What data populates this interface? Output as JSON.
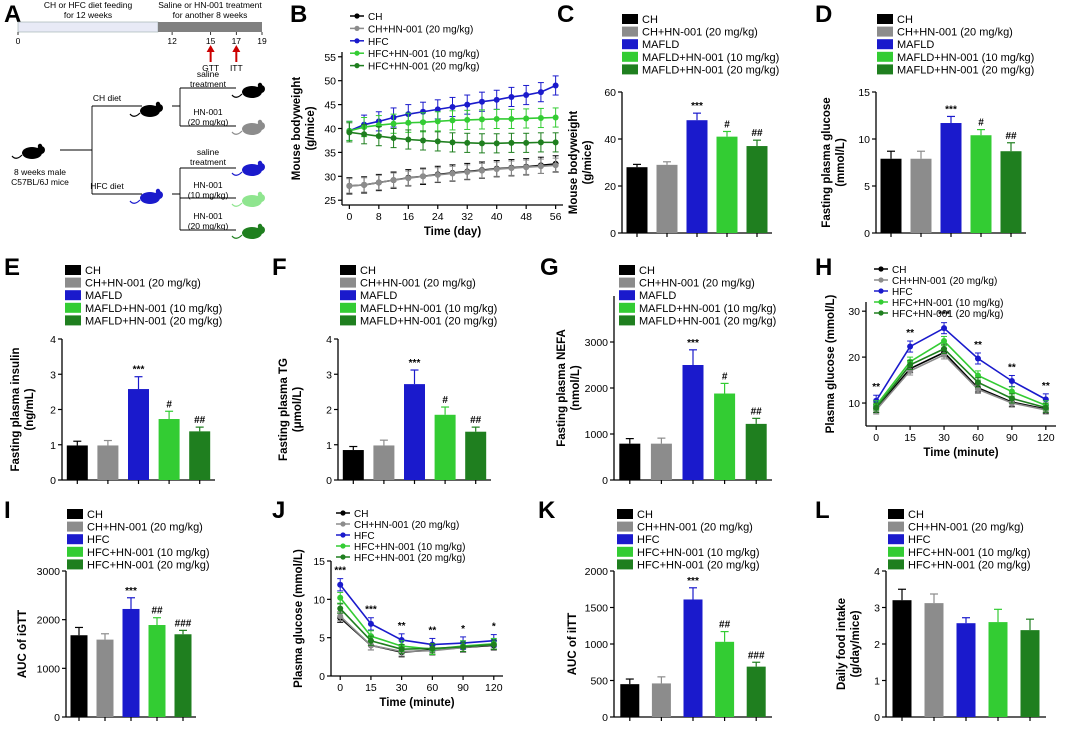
{
  "panel_letters": [
    "A",
    "B",
    "C",
    "D",
    "E",
    "F",
    "G",
    "H",
    "I",
    "J",
    "K",
    "L"
  ],
  "colors": {
    "CH": "#000000",
    "CHHN": "#8c8c8c",
    "HFC": "#1a1acc",
    "HFC10": "#33cc33",
    "HFC20": "#1f7f1f",
    "arrow": "#cc0000",
    "bar_light": "#e8eaf6",
    "bar_dark": "#808080"
  },
  "schematic": {
    "bar1_label": "CH or HFC diet feeding\nfor 12 weeks",
    "bar2_label": "Saline or HN-001 treatment\nfor another  8 weeks",
    "ticks": [
      "0",
      "12",
      "15",
      "17",
      "19"
    ],
    "gtt": "GTT",
    "itt": "ITT",
    "start": "8 weeks male\nC57BL/6J mice",
    "ch_diet": "CH diet",
    "hfc_diet": "HFC diet",
    "saline": "saline\ntreatment",
    "hn20": "HN-001\n(20 mg/kg)",
    "hn10": "HN-001\n(10 mg/kg)"
  },
  "chart_data": [
    {
      "panel": "B",
      "type": "line",
      "ylabel": "Mouse bodyweight\n(g/mice)",
      "xlabel": "Time (day)",
      "x": [
        0,
        4,
        8,
        12,
        16,
        20,
        24,
        28,
        32,
        36,
        40,
        44,
        48,
        52,
        56
      ],
      "xticks": [
        0,
        8,
        16,
        24,
        32,
        40,
        48,
        56
      ],
      "xlim": [
        -2,
        58
      ],
      "ylim": [
        24,
        56
      ],
      "yticks": [
        25,
        30,
        35,
        40,
        45,
        50,
        55
      ],
      "legend": [
        "CH",
        "CH+HN-001 (20 mg/kg)",
        "HFC",
        "HFC+HN-001 (10 mg/kg)",
        "HFC+HN-001 (20 mg/kg)"
      ],
      "series": [
        {
          "name": "CH",
          "values": [
            28,
            28.2,
            28.7,
            29.2,
            29.7,
            30,
            30.4,
            30.7,
            31,
            31.3,
            31.6,
            31.8,
            32,
            32.3,
            32.6
          ],
          "err": 1.7
        },
        {
          "name": "CH+HN-001 (20 mg/kg)",
          "values": [
            28,
            28.2,
            28.7,
            29.2,
            29.6,
            30,
            30.3,
            30.6,
            30.9,
            31.2,
            31.5,
            31.7,
            31.9,
            32.1,
            32.3
          ],
          "err": 1.5
        },
        {
          "name": "HFC",
          "values": [
            39.5,
            40.8,
            41.5,
            42.3,
            43,
            43.5,
            44,
            44.5,
            45,
            45.6,
            46,
            46.6,
            47,
            47.6,
            49
          ],
          "err": 2
        },
        {
          "name": "HFC+HN-001 (10 mg/kg)",
          "values": [
            39.5,
            40.3,
            40.7,
            41,
            41.2,
            41.3,
            41.5,
            41.7,
            41.8,
            41.9,
            42,
            42,
            42.1,
            42.2,
            42.3
          ],
          "err": 2
        },
        {
          "name": "HFC+HN-001 (20 mg/kg)",
          "values": [
            39.2,
            38.8,
            38.4,
            38,
            37.7,
            37.5,
            37.3,
            37.1,
            37,
            36.9,
            36.9,
            37,
            37,
            37.1,
            37.1
          ],
          "err": 2
        }
      ]
    },
    {
      "panel": "C",
      "type": "bar",
      "ylabel": "Mouse bodyweight\n(g/mice)",
      "ylim": [
        0,
        60
      ],
      "yticks": [
        0,
        20,
        40,
        60
      ],
      "legend": [
        "CH",
        "CH+HN-001 (20 mg/kg)",
        "MAFLD",
        "MAFLD+HN-001 (10 mg/kg)",
        "MAFLD+HN-001 (20 mg/kg)"
      ],
      "values": [
        28,
        29,
        48,
        41,
        37
      ],
      "errors": [
        1.2,
        1.3,
        3,
        2.2,
        2.5
      ],
      "annotations": [
        "",
        "",
        "***",
        "#",
        "##"
      ]
    },
    {
      "panel": "D",
      "type": "bar",
      "ylabel": "Fasting plasma glucose\n(mmol/L)",
      "ylim": [
        0,
        15
      ],
      "yticks": [
        0,
        5,
        10,
        15
      ],
      "legend": [
        "CH",
        "CH+HN-001 (20 mg/kg)",
        "MAFLD",
        "MAFLD+HN-001 (10 mg/kg)",
        "MAFLD+HN-001 (20 mg/kg)"
      ],
      "values": [
        7.9,
        7.9,
        11.7,
        10.4,
        8.7
      ],
      "errors": [
        0.8,
        0.8,
        0.7,
        0.6,
        0.9
      ],
      "annotations": [
        "",
        "",
        "***",
        "#",
        "##"
      ]
    },
    {
      "panel": "E",
      "type": "bar",
      "ylabel": "Fasting plasma insulin\n(ng/mL)",
      "ylim": [
        0,
        4
      ],
      "yticks": [
        0,
        1,
        2,
        3,
        4
      ],
      "legend": [
        "CH",
        "CH+HN-001 (20 mg/kg)",
        "MAFLD",
        "MAFLD+HN-001 (10 mg/kg)",
        "MAFLD+HN-001 (20 mg/kg)"
      ],
      "values": [
        0.98,
        0.98,
        2.58,
        1.73,
        1.38
      ],
      "errors": [
        0.12,
        0.14,
        0.35,
        0.22,
        0.12
      ],
      "annotations": [
        "",
        "",
        "***",
        "#",
        "##"
      ]
    },
    {
      "panel": "F",
      "type": "bar",
      "ylabel": "Fasting plasma TG\n(μmol/L)",
      "ylim": [
        0,
        4
      ],
      "yticks": [
        0,
        1,
        2,
        3,
        4
      ],
      "legend": [
        "CH",
        "CH+HN-001 (20 mg/kg)",
        "MAFLD",
        "MAFLD+HN-001 (10 mg/kg)",
        "MAFLD+HN-001 (20 mg/kg)"
      ],
      "values": [
        0.85,
        0.98,
        2.72,
        1.85,
        1.37
      ],
      "errors": [
        0.1,
        0.15,
        0.4,
        0.22,
        0.13
      ],
      "annotations": [
        "",
        "",
        "***",
        "#",
        "##"
      ]
    },
    {
      "panel": "G",
      "type": "bar",
      "ylabel": "Fasting plasma NEFA\n(nmol/L)",
      "ylim": [
        0,
        4000
      ],
      "yticks": [
        0,
        1000,
        2000,
        3000
      ],
      "legend": [
        "CH",
        "CH+HN-001 (20 mg/kg)",
        "MAFLD",
        "MAFLD+HN-001 (10 mg/kg)",
        "MAFLD+HN-001 (20 mg/kg)"
      ],
      "values": [
        790,
        790,
        2500,
        1880,
        1220
      ],
      "errors": [
        110,
        120,
        330,
        220,
        120
      ],
      "annotations": [
        "",
        "",
        "***",
        "#",
        "##"
      ]
    },
    {
      "panel": "H",
      "type": "line",
      "ylabel": "Plasma glucose (mmol/L)",
      "xlabel": "Time  (minute)",
      "xticklabels": [
        "0",
        "15",
        "30",
        "60",
        "90",
        "120"
      ],
      "ylim": [
        5,
        32
      ],
      "yticks": [
        10,
        20,
        30
      ],
      "legend": [
        "CH",
        "CH+HN-001 (20 mg/kg)",
        "HFC",
        "HFC+HN-001 (10 mg/kg)",
        "HFC+HN-001 (20 mg/kg)"
      ],
      "series": [
        {
          "name": "CH",
          "values": [
            8.8,
            17.5,
            21,
            13.3,
            10.2,
            8.7
          ],
          "err": 0.9
        },
        {
          "name": "CH+HN-001 (20 mg/kg)",
          "values": [
            8.5,
            17,
            20.5,
            13,
            10,
            8.5
          ],
          "err": 0.9
        },
        {
          "name": "HFC",
          "values": [
            10.5,
            22.3,
            26.3,
            19.7,
            14.8,
            10.8
          ],
          "err": 1.2
        },
        {
          "name": "HFC+HN-001 (10 mg/kg)",
          "values": [
            9.5,
            19,
            23.5,
            16,
            12.5,
            9.5
          ],
          "err": 1
        },
        {
          "name": "HFC+HN-001 (20 mg/kg)",
          "values": [
            9,
            18.3,
            21.8,
            14.5,
            11,
            9
          ],
          "err": 1
        }
      ],
      "annotations": [
        "**",
        "**",
        "***",
        "**",
        "**",
        "**"
      ]
    },
    {
      "panel": "I",
      "type": "bar",
      "ylabel": "AUC of iGTT",
      "ylim": [
        0,
        3000
      ],
      "yticks": [
        0,
        1000,
        2000,
        3000
      ],
      "legend": [
        "CH",
        "CH+HN-001 (20 mg/kg)",
        "HFC",
        "HFC+HN-001 (10 mg/kg)",
        "HFC+HN-001 (20 mg/kg)"
      ],
      "values": [
        1680,
        1590,
        2220,
        1890,
        1700
      ],
      "errors": [
        160,
        120,
        230,
        150,
        80
      ],
      "annotations": [
        "",
        "",
        "***",
        "##",
        "###"
      ]
    },
    {
      "panel": "J",
      "type": "line",
      "ylabel": "Plasma glucose (mmol/L)",
      "xlabel": "Time  (minute)",
      "xticklabels": [
        "0",
        "15",
        "30",
        "60",
        "90",
        "120"
      ],
      "ylim": [
        0,
        15
      ],
      "yticks": [
        0,
        5,
        10,
        15
      ],
      "legend": [
        "CH",
        "CH+HN-001 (20 mg/kg)",
        "HFC",
        "HFC+HN-001 (10 mg/kg)",
        "HFC+HN-001 (20 mg/kg)"
      ],
      "series": [
        {
          "name": "CH",
          "values": [
            7.6,
            4,
            3.1,
            3.4,
            3.7,
            4
          ],
          "err": 0.6
        },
        {
          "name": "CH+HN-001 (20 mg/kg)",
          "values": [
            7.8,
            4,
            3.2,
            3.3,
            3.7,
            4.1
          ],
          "err": 0.6
        },
        {
          "name": "HFC",
          "values": [
            11.9,
            6.8,
            4.7,
            4.1,
            4.3,
            4.6
          ],
          "err": 0.8
        },
        {
          "name": "HFC+HN-001 (10 mg/kg)",
          "values": [
            10.2,
            5.2,
            3.9,
            3.5,
            3.9,
            4.2
          ],
          "err": 0.7
        },
        {
          "name": "HFC+HN-001 (20 mg/kg)",
          "values": [
            8.8,
            4.6,
            3.5,
            3.6,
            3.8,
            4.1
          ],
          "err": 0.6
        }
      ],
      "annotations": [
        "***",
        "***",
        "**",
        "**",
        "*",
        "*"
      ]
    },
    {
      "panel": "K",
      "type": "bar",
      "ylabel": "AUC of iITT",
      "ylim": [
        0,
        2000
      ],
      "yticks": [
        0,
        500,
        1000,
        1500,
        2000
      ],
      "legend": [
        "CH",
        "CH+HN-001 (20 mg/kg)",
        "HFC",
        "HFC+HN-001 (10 mg/kg)",
        "HFC+HN-001 (20 mg/kg)"
      ],
      "values": [
        450,
        460,
        1610,
        1030,
        690
      ],
      "errors": [
        70,
        90,
        160,
        140,
        60
      ],
      "annotations": [
        "",
        "",
        "***",
        "##",
        "###"
      ]
    },
    {
      "panel": "L",
      "type": "bar",
      "ylabel": "Daily food intake\n(g/day/mice)",
      "ylim": [
        0,
        4
      ],
      "yticks": [
        0,
        1,
        2,
        3,
        4
      ],
      "legend": [
        "CH",
        "CH+HN-001 (20 mg/kg)",
        "HFC",
        "HFC+HN-001 (10 mg/kg)",
        "HFC+HN-001 (20 mg/kg)"
      ],
      "values": [
        3.2,
        3.12,
        2.57,
        2.6,
        2.38
      ],
      "errors": [
        0.3,
        0.25,
        0.15,
        0.35,
        0.3
      ],
      "annotations": [
        "",
        "",
        "",
        "",
        ""
      ]
    }
  ]
}
